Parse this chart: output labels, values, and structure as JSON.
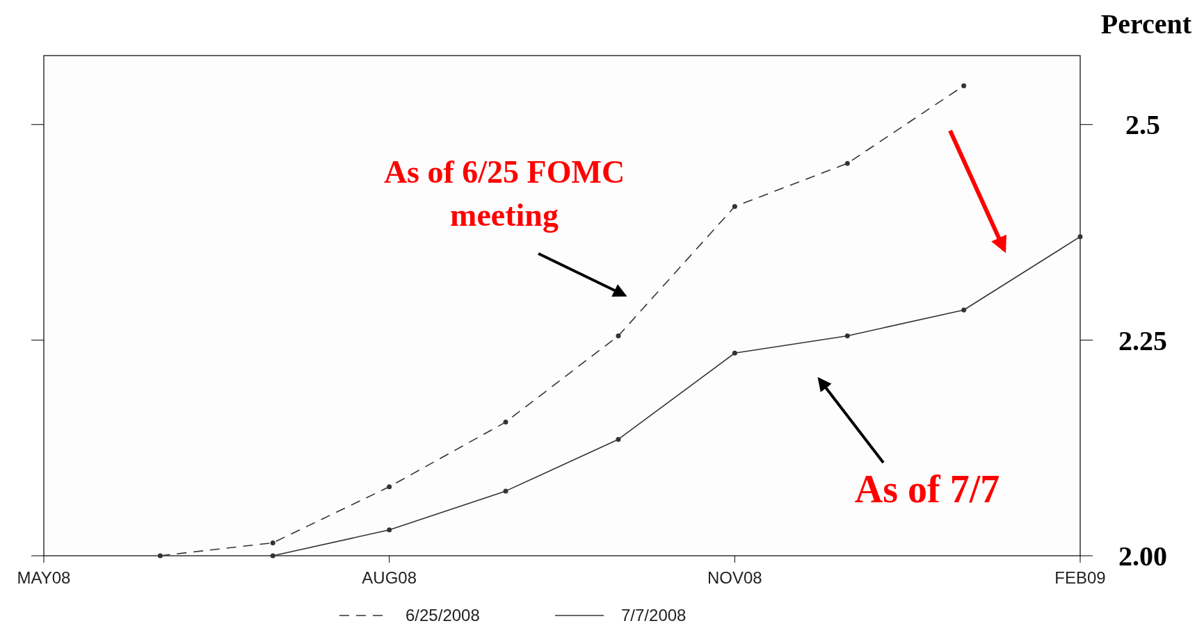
{
  "chart_data": {
    "type": "line",
    "ylabel": "Percent",
    "xlim": [
      "2008-05",
      "2009-02"
    ],
    "xticks": [
      {
        "value": "2008-05",
        "label": "MAY08"
      },
      {
        "value": "2008-08",
        "label": "AUG08"
      },
      {
        "value": "2008-11",
        "label": "NOV08"
      },
      {
        "value": "2009-02",
        "label": "FEB09"
      }
    ],
    "ylim": [
      2.0,
      2.58
    ],
    "yticks": [
      {
        "value": 2.0,
        "label": "2.00"
      },
      2.25,
      2.5
    ],
    "series": [
      {
        "name": "6/25/2008",
        "color": "#333333",
        "line_style": "dashed",
        "x": [
          "2008-06",
          "2008-07",
          "2008-08",
          "2008-09",
          "2008-10",
          "2008-11",
          "2008-12",
          "2009-01"
        ],
        "values": [
          2.0,
          2.015,
          2.08,
          2.155,
          2.255,
          2.405,
          2.455,
          2.545
        ]
      },
      {
        "name": "7/7/2008",
        "color": "#333333",
        "line_style": "solid",
        "x": [
          "2008-07",
          "2008-08",
          "2008-09",
          "2008-10",
          "2008-11",
          "2008-12",
          "2009-01",
          "2009-02"
        ],
        "values": [
          2.0,
          2.03,
          2.075,
          2.135,
          2.235,
          2.255,
          2.285,
          2.37
        ]
      }
    ],
    "annotations": [
      "As of 6/25 FOMC meeting",
      "As of 7/7"
    ],
    "marker": "circle",
    "legend": "bottom",
    "grid": false
  }
}
